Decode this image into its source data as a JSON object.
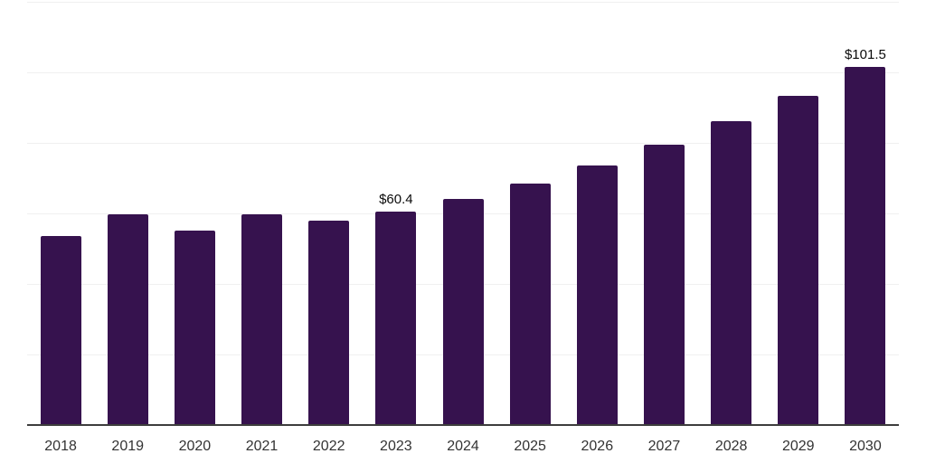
{
  "chart_data": {
    "type": "bar",
    "title": "",
    "xlabel": "",
    "ylabel": "",
    "categories": [
      "2018",
      "2019",
      "2020",
      "2021",
      "2022",
      "2023",
      "2024",
      "2025",
      "2026",
      "2027",
      "2028",
      "2029",
      "2030"
    ],
    "values": [
      53.6,
      59.7,
      55.1,
      59.7,
      57.9,
      60.4,
      64.0,
      68.4,
      73.5,
      79.5,
      86.2,
      93.4,
      101.5
    ],
    "bar_labels": {
      "2023": "$60.4",
      "2030": "$101.5"
    },
    "ylim": [
      0,
      120
    ],
    "gridline_step": 20,
    "grid": true,
    "y_tick_labels_shown": false,
    "legend": "none",
    "colors": {
      "bar": "#36124e",
      "axis_line": "#3d3d3d",
      "gridline": "#f0f0f0",
      "tick_label": "#333333",
      "data_label": "#0a0a0a",
      "background": "#ffffff"
    }
  }
}
